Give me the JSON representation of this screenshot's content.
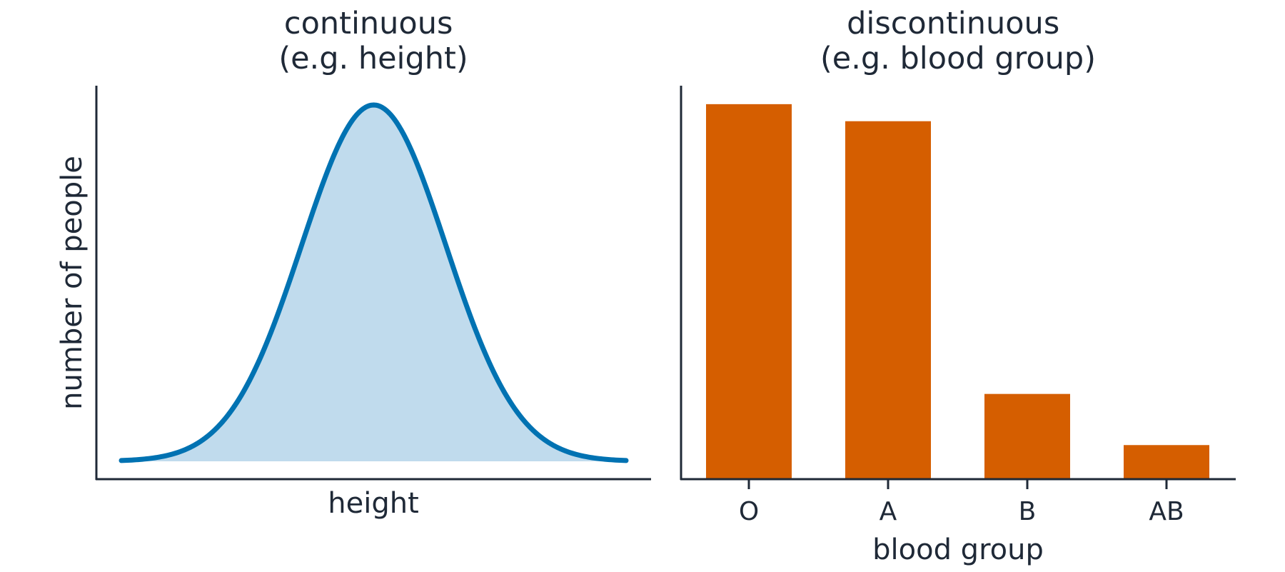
{
  "chart_data": [
    {
      "type": "area",
      "title": "continuous\n(e.g. height)",
      "title_lines": [
        "continuous",
        "(e.g. height)"
      ],
      "xlabel": "height",
      "ylabel": "number of people",
      "x_ticks": [],
      "y_ticks": [],
      "distribution": "normal",
      "mean": 0,
      "sd": 1,
      "xlim": [
        -3.5,
        3.5
      ],
      "grid": false,
      "colors": {
        "line": "#0072b2",
        "fill": "#c0dbed"
      }
    },
    {
      "type": "bar",
      "title": "discontinuous\n(e.g. blood group)",
      "title_lines": [
        "discontinuous",
        "(e.g. blood group)"
      ],
      "xlabel": "blood group",
      "ylabel": "",
      "categories": [
        "O",
        "A",
        "B",
        "AB"
      ],
      "values": [
        44,
        42,
        10,
        4
      ],
      "ylim": [
        0,
        46
      ],
      "y_ticks": [],
      "grid": false,
      "colors": {
        "bar": "#d55e00"
      }
    }
  ]
}
